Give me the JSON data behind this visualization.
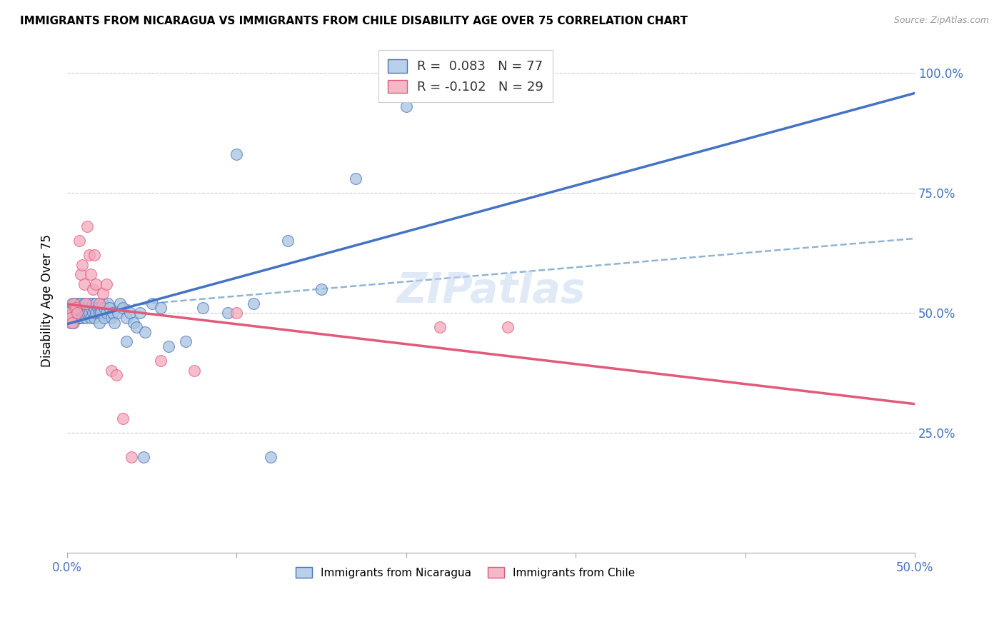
{
  "title": "IMMIGRANTS FROM NICARAGUA VS IMMIGRANTS FROM CHILE DISABILITY AGE OVER 75 CORRELATION CHART",
  "source": "Source: ZipAtlas.com",
  "ylabel": "Disability Age Over 75",
  "xlim": [
    0.0,
    0.5
  ],
  "ylim": [
    0.0,
    1.05
  ],
  "nicaragua_R": 0.083,
  "nicaragua_N": 77,
  "chile_R": -0.102,
  "chile_N": 29,
  "nicaragua_color": "#a8c4e0",
  "chile_color": "#f4a8bc",
  "nicaragua_line_color": "#4472c4",
  "chile_line_color": "#e05a7a",
  "nicaragua_x": [
    0.001,
    0.002,
    0.002,
    0.003,
    0.003,
    0.003,
    0.004,
    0.004,
    0.004,
    0.005,
    0.005,
    0.005,
    0.006,
    0.006,
    0.007,
    0.007,
    0.007,
    0.008,
    0.008,
    0.008,
    0.009,
    0.009,
    0.01,
    0.01,
    0.01,
    0.011,
    0.011,
    0.012,
    0.012,
    0.013,
    0.013,
    0.014,
    0.014,
    0.015,
    0.015,
    0.016,
    0.016,
    0.017,
    0.017,
    0.018,
    0.019,
    0.019,
    0.02,
    0.02,
    0.021,
    0.022,
    0.022,
    0.023,
    0.024,
    0.025,
    0.026,
    0.027,
    0.028,
    0.03,
    0.031,
    0.033,
    0.035,
    0.037,
    0.039,
    0.041,
    0.043,
    0.046,
    0.05,
    0.055,
    0.06,
    0.07,
    0.08,
    0.095,
    0.11,
    0.13,
    0.15,
    0.17,
    0.2,
    0.035,
    0.045,
    0.1,
    0.12
  ],
  "nicaragua_y": [
    0.5,
    0.51,
    0.48,
    0.52,
    0.5,
    0.49,
    0.51,
    0.5,
    0.48,
    0.52,
    0.5,
    0.49,
    0.51,
    0.5,
    0.52,
    0.5,
    0.49,
    0.51,
    0.5,
    0.52,
    0.5,
    0.49,
    0.51,
    0.5,
    0.52,
    0.5,
    0.49,
    0.51,
    0.5,
    0.52,
    0.5,
    0.51,
    0.49,
    0.5,
    0.52,
    0.51,
    0.49,
    0.5,
    0.52,
    0.51,
    0.5,
    0.48,
    0.51,
    0.5,
    0.52,
    0.51,
    0.49,
    0.5,
    0.52,
    0.51,
    0.49,
    0.5,
    0.48,
    0.5,
    0.52,
    0.51,
    0.49,
    0.5,
    0.48,
    0.47,
    0.5,
    0.46,
    0.52,
    0.51,
    0.43,
    0.44,
    0.51,
    0.5,
    0.52,
    0.65,
    0.55,
    0.78,
    0.93,
    0.44,
    0.2,
    0.83,
    0.2
  ],
  "chile_x": [
    0.001,
    0.002,
    0.003,
    0.004,
    0.005,
    0.006,
    0.007,
    0.008,
    0.009,
    0.01,
    0.011,
    0.012,
    0.013,
    0.014,
    0.015,
    0.016,
    0.017,
    0.019,
    0.021,
    0.023,
    0.026,
    0.029,
    0.033,
    0.038,
    0.055,
    0.075,
    0.1,
    0.22,
    0.26
  ],
  "chile_y": [
    0.5,
    0.49,
    0.48,
    0.52,
    0.51,
    0.5,
    0.65,
    0.58,
    0.6,
    0.56,
    0.52,
    0.68,
    0.62,
    0.58,
    0.55,
    0.62,
    0.56,
    0.52,
    0.54,
    0.56,
    0.38,
    0.37,
    0.28,
    0.2,
    0.4,
    0.38,
    0.5,
    0.47,
    0.47
  ],
  "dashed_line_x": [
    0.0,
    0.5
  ],
  "dashed_line_y": [
    0.505,
    0.655
  ]
}
